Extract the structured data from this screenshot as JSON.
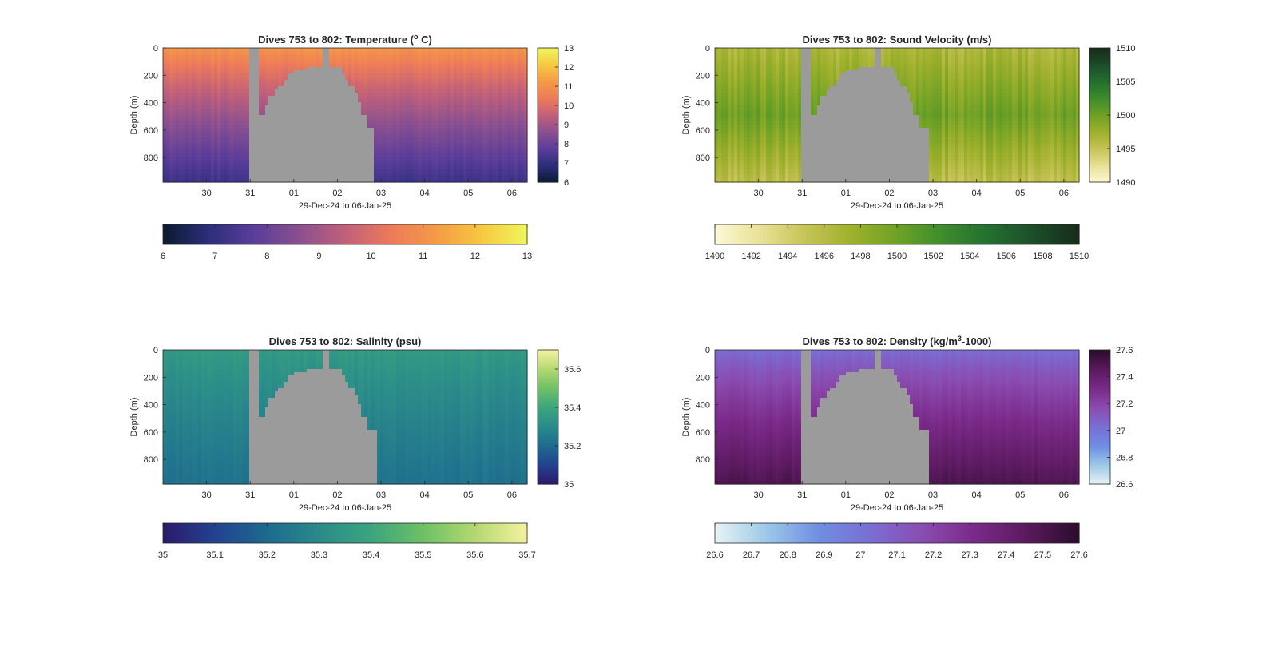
{
  "figure": {
    "background": "#ffffff",
    "land_color": "#9b9b9b",
    "axis_color": "#262626"
  },
  "chart_data": [
    {
      "id": "temperature",
      "type": "heatmap",
      "title": "Dives 753 to 802: Temperature (",
      "title_sup": "o",
      "title_end": " C)",
      "xlabel": "29-Dec-24 to 06-Jan-25",
      "ylabel": "Depth (m)",
      "xticks": [
        "30",
        "31",
        "01",
        "02",
        "03",
        "04",
        "05",
        "06"
      ],
      "yticks": [
        "0",
        "200",
        "400",
        "600",
        "800"
      ],
      "ylim": [
        0,
        980
      ],
      "cbar_right_ticks": [
        "6",
        "7",
        "8",
        "9",
        "10",
        "11",
        "12",
        "13"
      ],
      "cbar_bottom_ticks": [
        "6",
        "7",
        "8",
        "9",
        "10",
        "11",
        "12",
        "13"
      ],
      "clim": [
        6,
        13
      ],
      "colormap": [
        "#0b1a2e",
        "#2b2e7a",
        "#5b3d9a",
        "#8a5090",
        "#c0607a",
        "#ec7a5a",
        "#f59a46",
        "#f7c841",
        "#f0f55a"
      ],
      "profile": {
        "surface": 11.2,
        "bottom": 7.2
      },
      "gap_shape": "temperature"
    },
    {
      "id": "sound_velocity",
      "type": "heatmap",
      "title": "Dives 753 to 802: Sound Velocity (m/s)",
      "xlabel": "29-Dec-24 to 06-Jan-25",
      "ylabel": "Depth (m)",
      "xticks": [
        "30",
        "31",
        "01",
        "02",
        "03",
        "04",
        "05",
        "06"
      ],
      "yticks": [
        "0",
        "200",
        "400",
        "600",
        "800"
      ],
      "ylim": [
        0,
        980
      ],
      "cbar_right_ticks": [
        "1490",
        "1495",
        "1500",
        "1505",
        "1510"
      ],
      "cbar_bottom_ticks": [
        "1490",
        "1492",
        "1494",
        "1496",
        "1498",
        "1500",
        "1502",
        "1504",
        "1506",
        "1508",
        "1510"
      ],
      "clim": [
        1490,
        1510
      ],
      "colormap": [
        "#fdf8d6",
        "#e8e196",
        "#c6c356",
        "#9fb02c",
        "#6ea125",
        "#3e8c2c",
        "#23702f",
        "#1d4d2a",
        "#172b1a"
      ],
      "profile": {
        "surface": 1496.5,
        "bottom": 1495.5,
        "mid": 1500.0
      },
      "gap_shape": "other"
    },
    {
      "id": "salinity",
      "type": "heatmap",
      "title": "Dives 753 to 802: Salinity (psu)",
      "xlabel": "29-Dec-24 to 06-Jan-25",
      "ylabel": "Depth (m)",
      "xticks": [
        "30",
        "31",
        "01",
        "02",
        "03",
        "04",
        "05",
        "06"
      ],
      "yticks": [
        "0",
        "200",
        "400",
        "600",
        "800"
      ],
      "ylim": [
        0,
        980
      ],
      "cbar_right_ticks": [
        "35",
        "35.2",
        "35.4",
        "35.6"
      ],
      "cbar_bottom_ticks": [
        "35",
        "35.1",
        "35.2",
        "35.3",
        "35.4",
        "35.5",
        "35.6",
        "35.7"
      ],
      "clim": [
        35.0,
        35.7
      ],
      "colormap": [
        "#2b1a6a",
        "#23428f",
        "#1d6a8f",
        "#2a8a8a",
        "#3aa57e",
        "#6ec066",
        "#b3d870",
        "#f4f2a0"
      ],
      "profile": {
        "surface": 35.36,
        "bottom": 35.22
      },
      "gap_shape": "other"
    },
    {
      "id": "density",
      "type": "heatmap",
      "title": "Dives 753 to 802: Density (kg/m",
      "title_sup": "3",
      "title_end": "-1000)",
      "xlabel": "29-Dec-24 to 06-Jan-25",
      "ylabel": "Depth (m)",
      "xticks": [
        "30",
        "31",
        "01",
        "02",
        "03",
        "04",
        "05",
        "06"
      ],
      "yticks": [
        "0",
        "200",
        "400",
        "600",
        "800"
      ],
      "ylim": [
        0,
        980
      ],
      "cbar_right_ticks": [
        "26.6",
        "26.8",
        "27",
        "27.2",
        "27.4",
        "27.6"
      ],
      "cbar_bottom_ticks": [
        "26.6",
        "26.7",
        "26.8",
        "26.9",
        "27",
        "27.1",
        "27.2",
        "27.3",
        "27.4",
        "27.5",
        "27.6"
      ],
      "clim": [
        26.6,
        27.6
      ],
      "colormap": [
        "#e8f4f4",
        "#9cc8e8",
        "#6f8ee2",
        "#7a6ed4",
        "#8a4cb0",
        "#7a2a88",
        "#5a1a5e",
        "#2a0c2a"
      ],
      "profile": {
        "surface": 27.02,
        "bottom": 27.5
      },
      "gap_shape": "other"
    }
  ]
}
